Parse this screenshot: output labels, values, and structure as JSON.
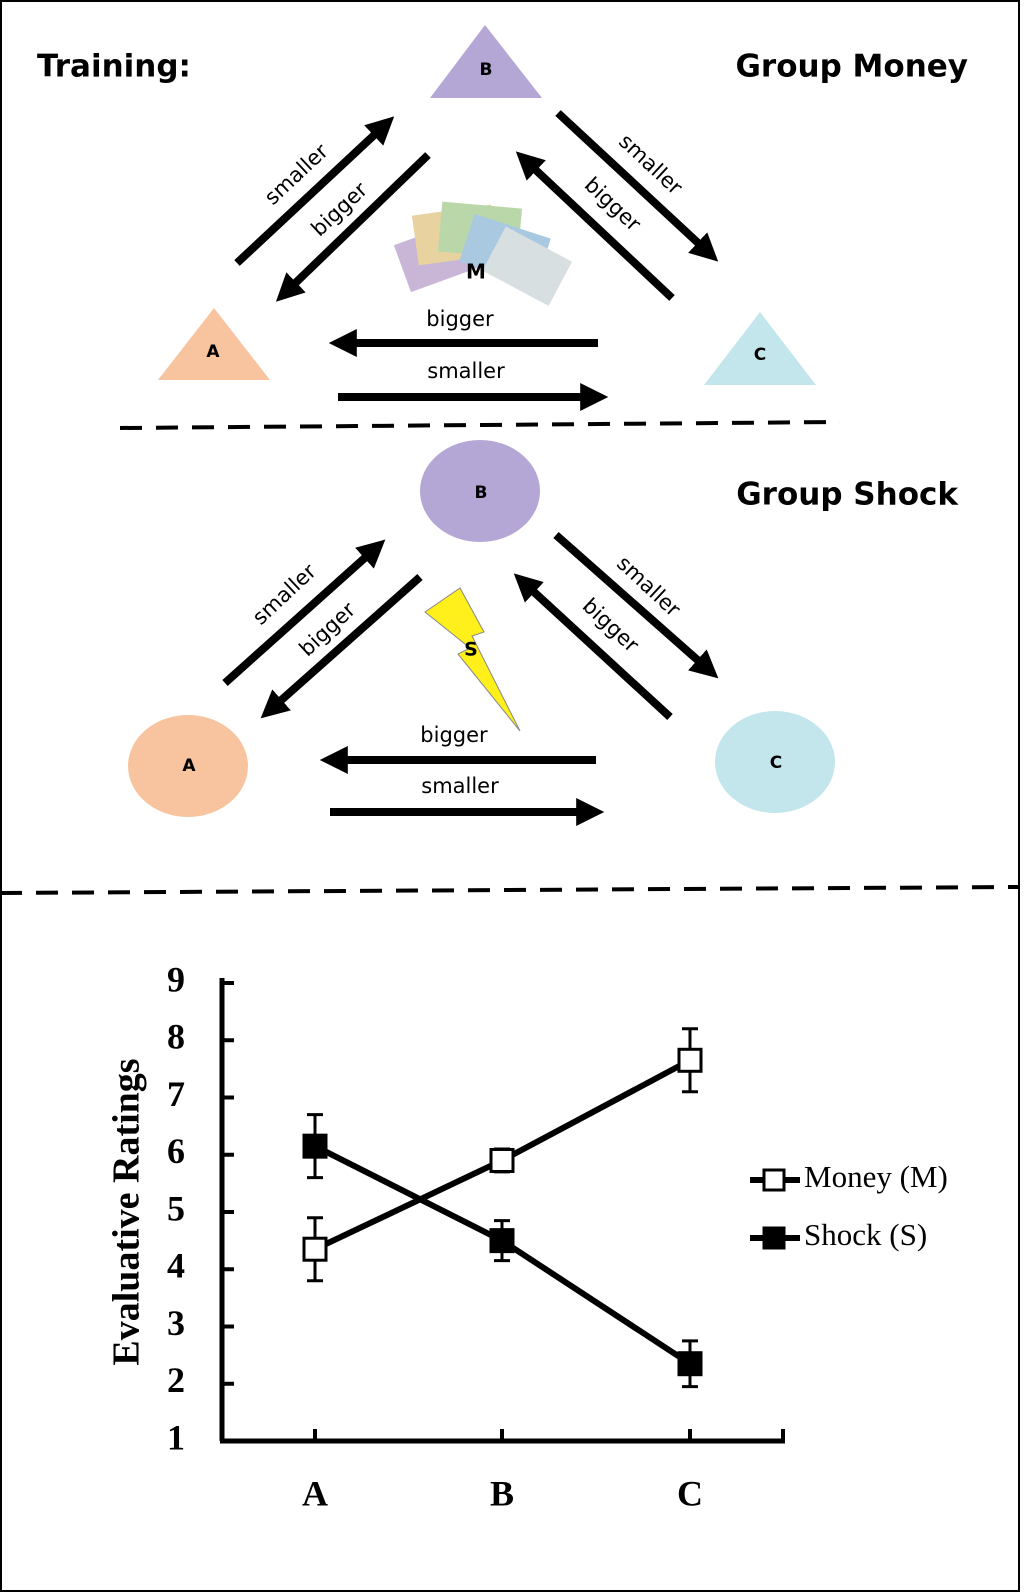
{
  "training_label": "Training:",
  "groups": [
    {
      "title": "Group Money",
      "nodes": [
        "B",
        "A",
        "C"
      ],
      "arrow_labels": [
        "smaller",
        "bigger",
        "smaller",
        "bigger",
        "bigger",
        "smaller"
      ],
      "icon_label": "M"
    },
    {
      "title": "Group Shock",
      "nodes": [
        "B",
        "A",
        "C"
      ],
      "arrow_labels": [
        "smaller",
        "bigger",
        "smaller",
        "bigger",
        "bigger",
        "smaller"
      ],
      "icon_label": "S"
    }
  ],
  "chart_data": {
    "type": "line",
    "ylabel": "Evaluative Ratings",
    "categories": [
      "A",
      "B",
      "C"
    ],
    "series": [
      {
        "name": "Money (M)",
        "color": "#ffffff",
        "values": [
          4.35,
          5.9,
          7.65
        ],
        "errors": [
          0.55,
          0.2,
          0.55
        ]
      },
      {
        "name": "Shock (S)",
        "color": "#000000",
        "values": [
          6.15,
          4.5,
          2.35
        ],
        "errors": [
          0.55,
          0.35,
          0.4
        ]
      }
    ],
    "ylim": [
      1,
      9
    ],
    "yticks": [
      1,
      2,
      3,
      4,
      5,
      6,
      7,
      8,
      9
    ]
  }
}
